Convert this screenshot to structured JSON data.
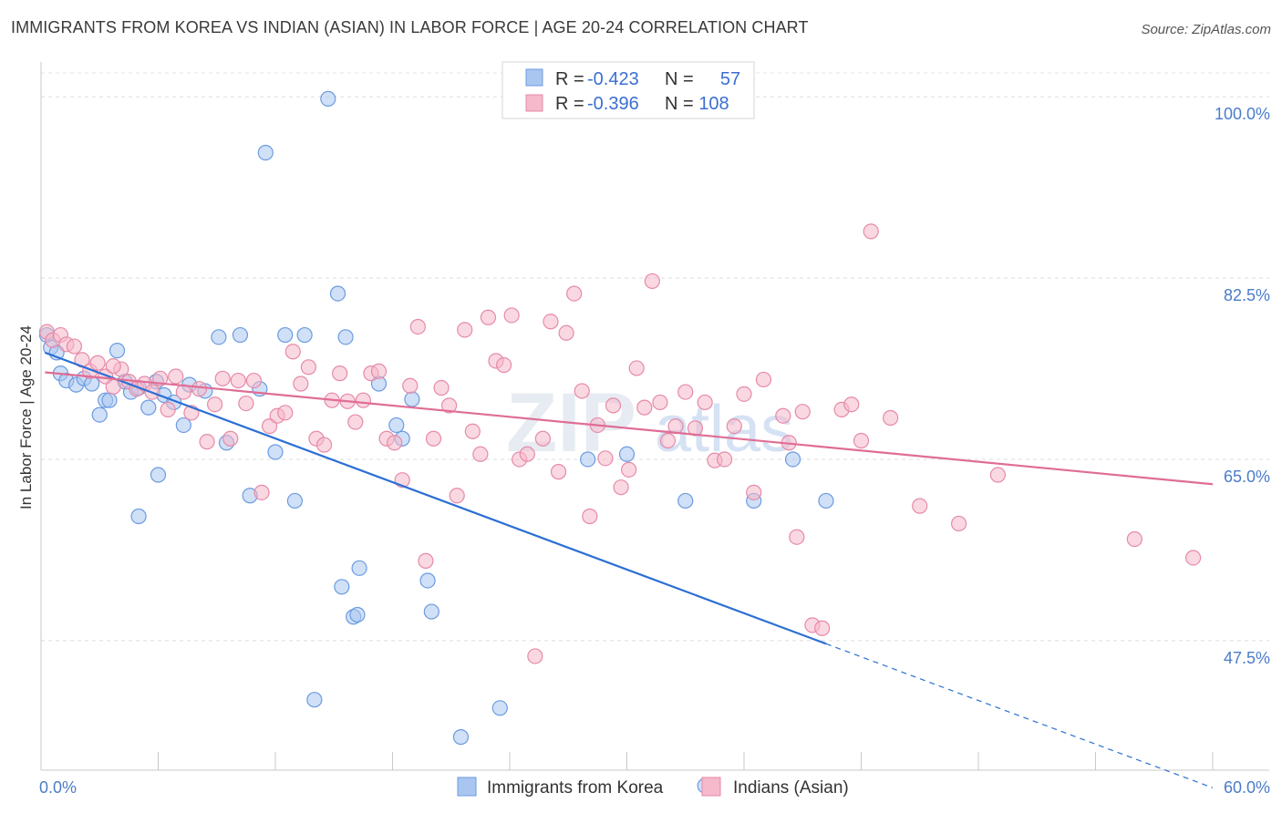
{
  "header": {
    "title": "IMMIGRANTS FROM KOREA VS INDIAN (ASIAN) IN LABOR FORCE | AGE 20-24 CORRELATION CHART",
    "source": "Source: ZipAtlas.com"
  },
  "watermark": {
    "zip": "ZIP",
    "atlas": "atlas"
  },
  "legend": {
    "rows": [
      {
        "r_label": "R =",
        "r_value": "-0.423",
        "n_label": "N =",
        "n_value": "57",
        "color": "#a9c6f0",
        "stroke": "#6b9be0"
      },
      {
        "r_label": "R =",
        "r_value": "-0.396",
        "n_label": "N =",
        "n_value": "108",
        "color": "#f6b8cb",
        "stroke": "#e68aa8"
      }
    ]
  },
  "chart_data": {
    "type": "scatter",
    "title": "IMMIGRANTS FROM KOREA VS INDIAN (ASIAN) IN LABOR FORCE | AGE 20-24 CORRELATION CHART",
    "xlabel": "",
    "ylabel": "In Labor Force | Age 20-24",
    "xlim": [
      0,
      60
    ],
    "ylim": [
      35,
      103
    ],
    "x_tick_labels": [
      "0.0%",
      "60.0%"
    ],
    "y_ticks": [
      {
        "value": 100,
        "label": "100.0%"
      },
      {
        "value": 82.5,
        "label": "82.5%"
      },
      {
        "value": 65,
        "label": "65.0%"
      },
      {
        "value": 47.5,
        "label": "47.5%"
      }
    ],
    "grid": true,
    "series": [
      {
        "name": "Immigrants from Korea",
        "color": "#a9c6f0",
        "stroke": "#6b9be0",
        "trend": {
          "x": [
            0.2,
            40.2
          ],
          "y": [
            75.3,
            47.2
          ],
          "dashed_to": [
            60,
            33.3
          ],
          "color": "#2b6fd3"
        },
        "points": [
          [
            0.3,
            77.0
          ],
          [
            0.5,
            75.8
          ],
          [
            0.8,
            75.3
          ],
          [
            1.0,
            73.3
          ],
          [
            1.3,
            72.6
          ],
          [
            1.8,
            72.2
          ],
          [
            2.2,
            72.8
          ],
          [
            2.6,
            72.3
          ],
          [
            3.0,
            69.3
          ],
          [
            3.3,
            70.7
          ],
          [
            3.5,
            70.7
          ],
          [
            3.9,
            75.5
          ],
          [
            4.3,
            72.5
          ],
          [
            4.6,
            71.5
          ],
          [
            5.0,
            71.9
          ],
          [
            5.5,
            70.0
          ],
          [
            5.9,
            72.5
          ],
          [
            6.3,
            71.2
          ],
          [
            6.8,
            70.5
          ],
          [
            7.3,
            68.3
          ],
          [
            7.6,
            72.2
          ],
          [
            8.4,
            71.6
          ],
          [
            9.1,
            76.8
          ],
          [
            9.5,
            66.6
          ],
          [
            10.2,
            77.0
          ],
          [
            10.7,
            61.5
          ],
          [
            11.2,
            71.8
          ],
          [
            11.5,
            94.6
          ],
          [
            12.0,
            65.7
          ],
          [
            12.5,
            77.0
          ],
          [
            13.0,
            61.0
          ],
          [
            13.5,
            77.0
          ],
          [
            14.0,
            41.8
          ],
          [
            14.7,
            99.8
          ],
          [
            15.2,
            81.0
          ],
          [
            15.4,
            52.7
          ],
          [
            15.6,
            76.8
          ],
          [
            16.0,
            49.8
          ],
          [
            16.2,
            50.0
          ],
          [
            16.3,
            54.5
          ],
          [
            17.3,
            72.3
          ],
          [
            18.2,
            68.3
          ],
          [
            18.5,
            67.0
          ],
          [
            19.0,
            70.8
          ],
          [
            19.8,
            53.3
          ],
          [
            20.0,
            50.3
          ],
          [
            21.5,
            38.2
          ],
          [
            23.5,
            41.0
          ],
          [
            28.0,
            65.0
          ],
          [
            30.0,
            65.5
          ],
          [
            33.0,
            61.0
          ],
          [
            36.5,
            61.0
          ],
          [
            38.5,
            65.0
          ],
          [
            40.2,
            61.0
          ],
          [
            34.0,
            33.5
          ],
          [
            6.0,
            63.5
          ],
          [
            5.0,
            59.5
          ]
        ]
      },
      {
        "name": "Indians (Asian)",
        "color": "#f6b8cb",
        "stroke": "#e68aa8",
        "trend": {
          "x": [
            0.2,
            60
          ],
          "y": [
            73.4,
            62.6
          ],
          "color": "#e06d95"
        },
        "points": [
          [
            0.3,
            77.3
          ],
          [
            0.6,
            76.5
          ],
          [
            1.0,
            77.0
          ],
          [
            1.3,
            76.1
          ],
          [
            1.7,
            75.9
          ],
          [
            2.1,
            74.6
          ],
          [
            2.5,
            73.5
          ],
          [
            2.9,
            74.3
          ],
          [
            3.3,
            73.0
          ],
          [
            3.7,
            72.0
          ],
          [
            4.1,
            73.7
          ],
          [
            4.5,
            72.5
          ],
          [
            4.9,
            71.8
          ],
          [
            5.3,
            72.3
          ],
          [
            5.7,
            71.5
          ],
          [
            6.1,
            72.8
          ],
          [
            6.5,
            69.8
          ],
          [
            6.9,
            73.0
          ],
          [
            7.3,
            71.5
          ],
          [
            7.7,
            69.5
          ],
          [
            8.1,
            71.8
          ],
          [
            8.5,
            66.7
          ],
          [
            8.9,
            70.3
          ],
          [
            9.3,
            72.8
          ],
          [
            9.7,
            67.0
          ],
          [
            10.1,
            72.6
          ],
          [
            10.5,
            70.4
          ],
          [
            10.9,
            72.6
          ],
          [
            11.3,
            61.8
          ],
          [
            11.7,
            68.2
          ],
          [
            12.1,
            69.2
          ],
          [
            12.5,
            69.5
          ],
          [
            12.9,
            75.4
          ],
          [
            13.3,
            72.3
          ],
          [
            13.7,
            73.9
          ],
          [
            14.1,
            67.0
          ],
          [
            14.5,
            66.4
          ],
          [
            14.9,
            70.7
          ],
          [
            15.3,
            73.3
          ],
          [
            15.7,
            70.6
          ],
          [
            16.1,
            68.6
          ],
          [
            16.5,
            70.7
          ],
          [
            16.9,
            73.3
          ],
          [
            17.3,
            73.5
          ],
          [
            17.7,
            67.0
          ],
          [
            18.1,
            66.6
          ],
          [
            18.5,
            63.0
          ],
          [
            18.9,
            72.1
          ],
          [
            19.3,
            77.8
          ],
          [
            19.7,
            55.2
          ],
          [
            20.1,
            67.0
          ],
          [
            20.5,
            71.9
          ],
          [
            20.9,
            70.2
          ],
          [
            21.3,
            61.5
          ],
          [
            21.7,
            77.5
          ],
          [
            22.1,
            67.7
          ],
          [
            22.5,
            65.5
          ],
          [
            22.9,
            78.7
          ],
          [
            23.3,
            74.5
          ],
          [
            23.7,
            74.1
          ],
          [
            24.1,
            78.9
          ],
          [
            24.5,
            65.0
          ],
          [
            24.9,
            65.5
          ],
          [
            25.3,
            46.0
          ],
          [
            25.7,
            67.0
          ],
          [
            26.1,
            78.3
          ],
          [
            26.5,
            63.8
          ],
          [
            26.9,
            77.2
          ],
          [
            27.3,
            81.0
          ],
          [
            27.7,
            71.6
          ],
          [
            28.1,
            59.5
          ],
          [
            28.5,
            68.3
          ],
          [
            28.9,
            65.1
          ],
          [
            29.3,
            70.2
          ],
          [
            29.7,
            62.3
          ],
          [
            30.1,
            64.0
          ],
          [
            30.5,
            73.8
          ],
          [
            30.9,
            70.0
          ],
          [
            31.3,
            82.2
          ],
          [
            31.7,
            70.5
          ],
          [
            32.1,
            66.8
          ],
          [
            32.5,
            68.2
          ],
          [
            33.0,
            71.5
          ],
          [
            33.5,
            68.0
          ],
          [
            34.0,
            70.5
          ],
          [
            34.5,
            64.9
          ],
          [
            35.0,
            65.0
          ],
          [
            35.5,
            68.2
          ],
          [
            36.0,
            71.3
          ],
          [
            36.5,
            61.8
          ],
          [
            37.0,
            72.7
          ],
          [
            38.0,
            69.2
          ],
          [
            38.3,
            66.6
          ],
          [
            38.7,
            57.5
          ],
          [
            39.0,
            69.6
          ],
          [
            39.5,
            49.0
          ],
          [
            40.0,
            48.7
          ],
          [
            41.0,
            69.8
          ],
          [
            41.5,
            70.3
          ],
          [
            42.0,
            66.8
          ],
          [
            42.5,
            87.0
          ],
          [
            43.5,
            69.0
          ],
          [
            45.0,
            60.5
          ],
          [
            47.0,
            58.8
          ],
          [
            49.0,
            63.5
          ],
          [
            56.0,
            57.3
          ],
          [
            59.0,
            55.5
          ],
          [
            3.7,
            74.0
          ]
        ]
      }
    ]
  },
  "bottom_legend": {
    "items": [
      {
        "label": "Immigrants from Korea",
        "color": "#a9c6f0",
        "stroke": "#6b9be0"
      },
      {
        "label": "Indians (Asian)",
        "color": "#f6b8cb",
        "stroke": "#e68aa8"
      }
    ]
  }
}
